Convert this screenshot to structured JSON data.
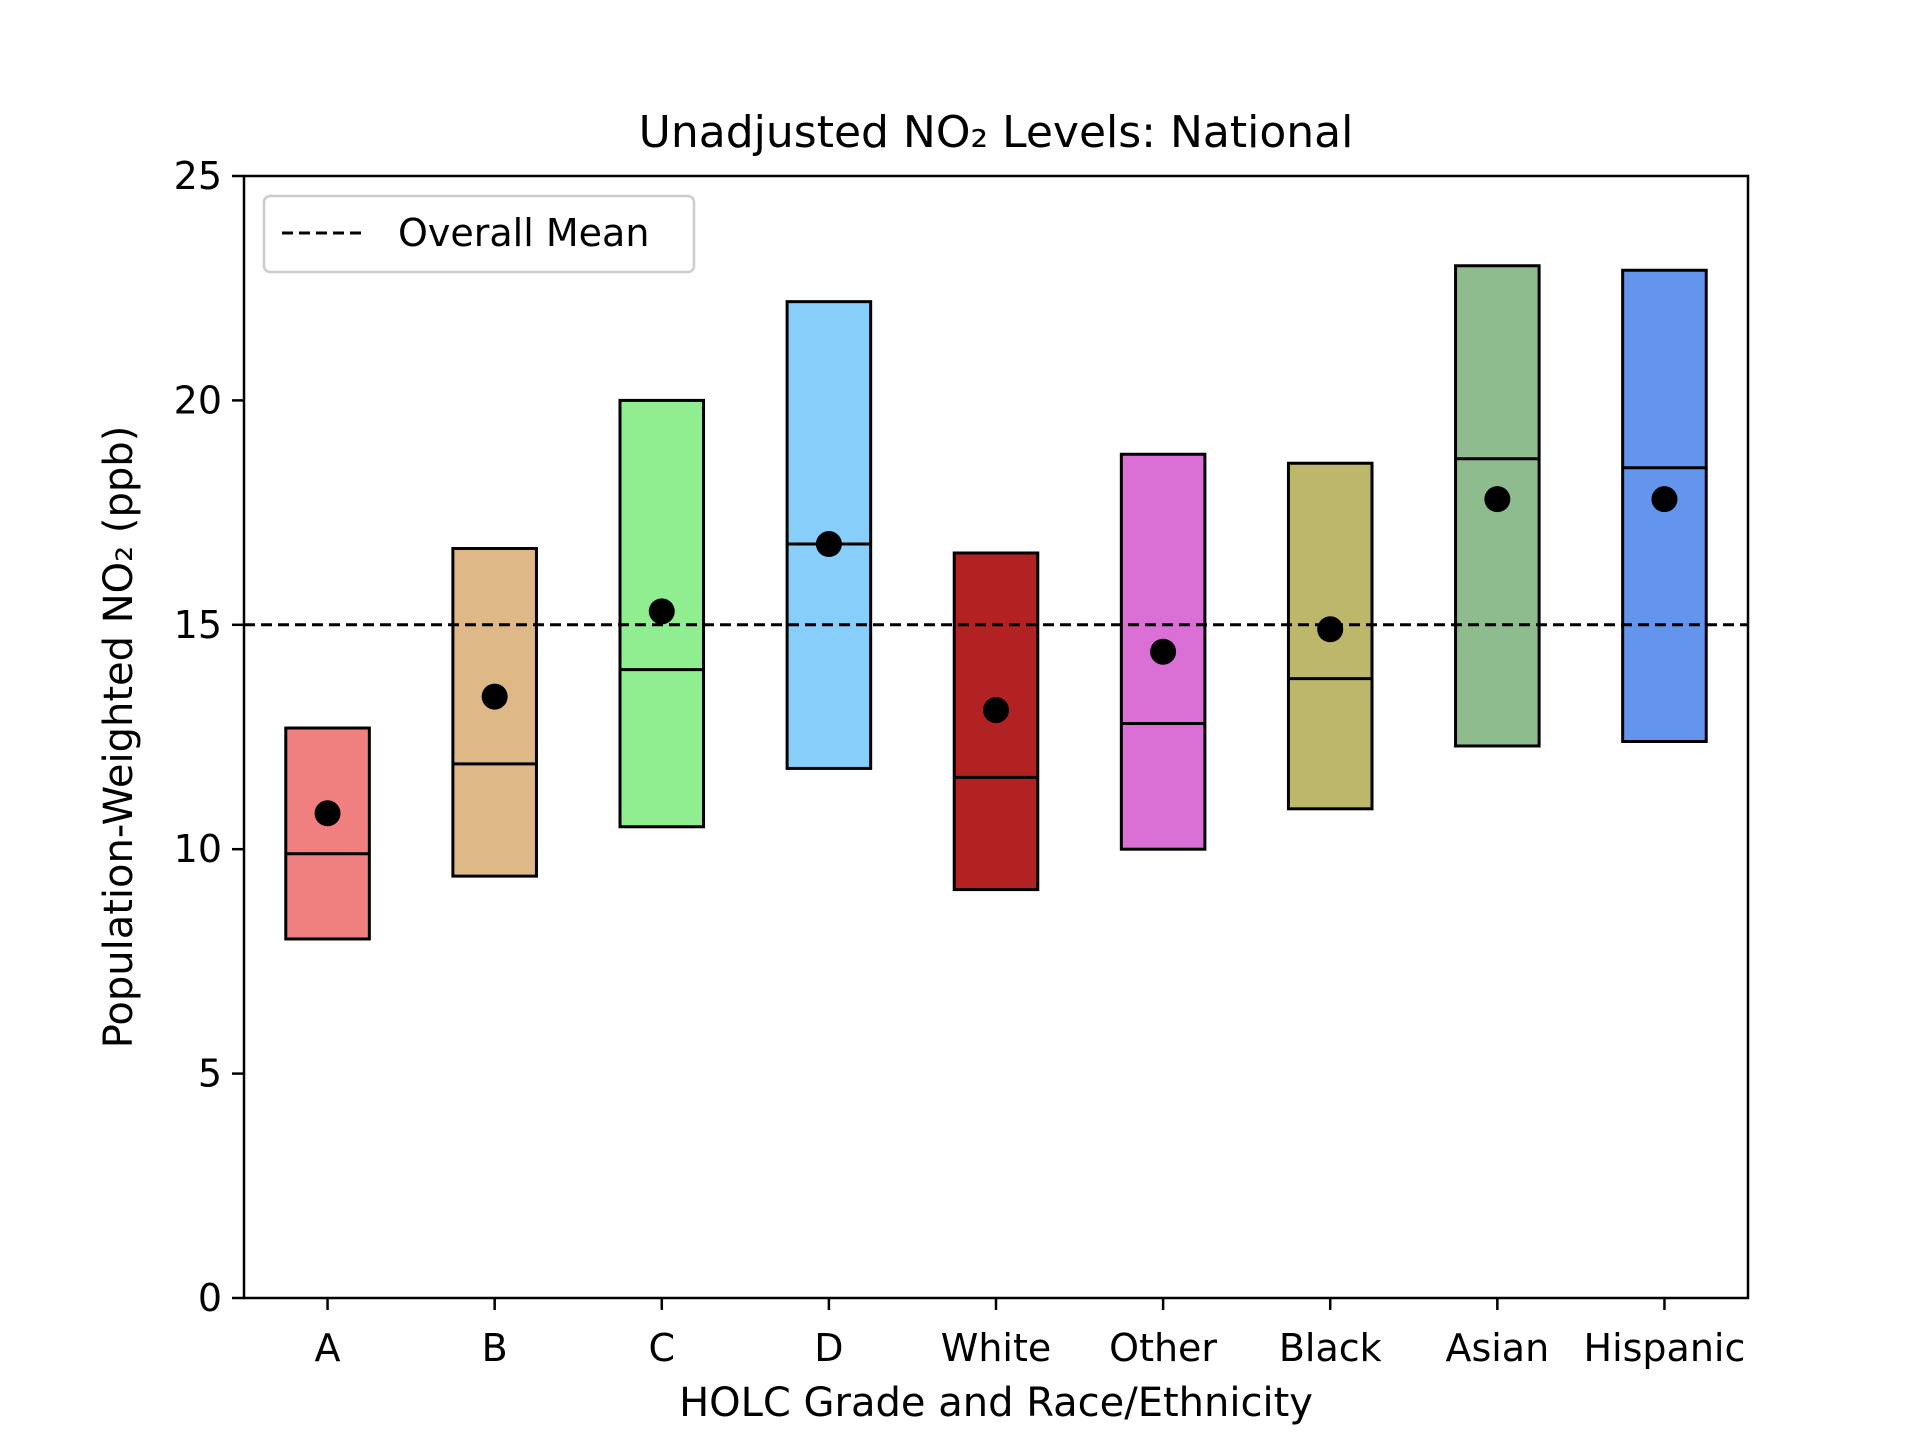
{
  "chart_data": {
    "type": "box",
    "title": "Unadjusted NO₂ Levels: National",
    "xlabel": "HOLC Grade and Race/Ethnicity",
    "ylabel": "Population-Weighted NO₂ (ppb)",
    "ylim": [
      0,
      25
    ],
    "yticks": [
      0,
      5,
      10,
      15,
      20,
      25
    ],
    "grid": false,
    "legend": {
      "placement": "top-left",
      "entries": [
        {
          "label": "Overall Mean",
          "style": "dashed"
        }
      ]
    },
    "overall_mean": 15.0,
    "categories": [
      "A",
      "B",
      "C",
      "D",
      "White",
      "Other",
      "Black",
      "Asian",
      "Hispanic"
    ],
    "boxes": [
      {
        "category": "A",
        "q1": 8.0,
        "median": 9.9,
        "q3": 12.7,
        "mean": 10.8,
        "color": "#F08080"
      },
      {
        "category": "B",
        "q1": 9.4,
        "median": 11.9,
        "q3": 16.7,
        "mean": 13.4,
        "color": "#DEB887"
      },
      {
        "category": "C",
        "q1": 10.5,
        "median": 14.0,
        "q3": 20.0,
        "mean": 15.3,
        "color": "#90EE90"
      },
      {
        "category": "D",
        "q1": 11.8,
        "median": 16.8,
        "q3": 22.2,
        "mean": 16.8,
        "color": "#87CEFA"
      },
      {
        "category": "White",
        "q1": 9.1,
        "median": 11.6,
        "q3": 16.6,
        "mean": 13.1,
        "color": "#B22222"
      },
      {
        "category": "Other",
        "q1": 10.0,
        "median": 12.8,
        "q3": 18.8,
        "mean": 14.4,
        "color": "#DA70D6"
      },
      {
        "category": "Black",
        "q1": 10.9,
        "median": 13.8,
        "q3": 18.6,
        "mean": 14.9,
        "color": "#BDB76B"
      },
      {
        "category": "Asian",
        "q1": 12.3,
        "median": 18.7,
        "q3": 23.0,
        "mean": 17.8,
        "color": "#8FBC8F"
      },
      {
        "category": "Hispanic",
        "q1": 12.4,
        "median": 18.5,
        "q3": 22.9,
        "mean": 17.8,
        "color": "#6495ED"
      }
    ]
  }
}
